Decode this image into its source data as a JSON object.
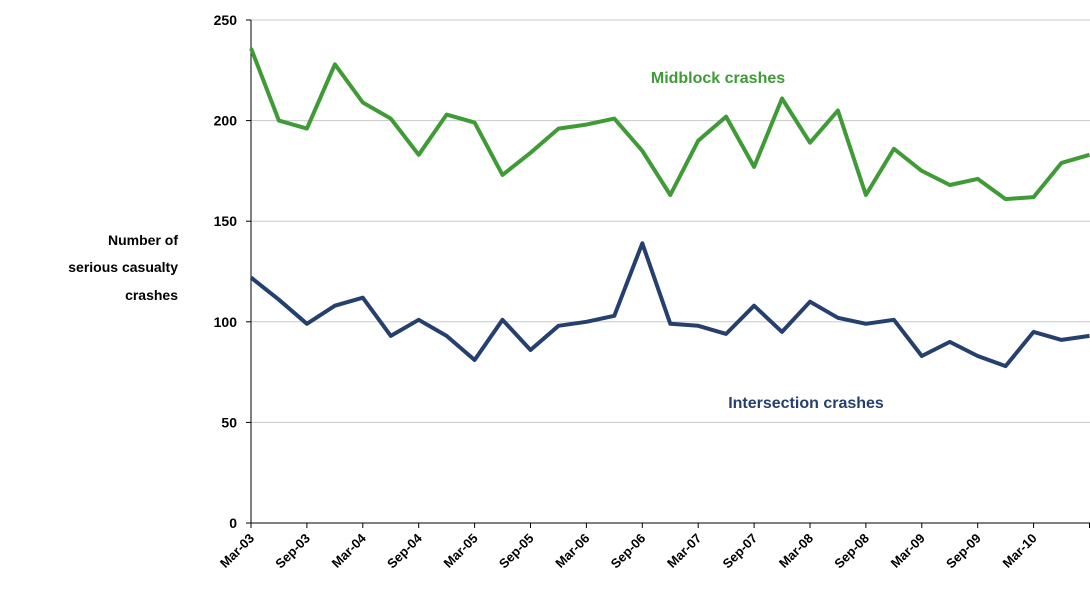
{
  "chart_data": {
    "type": "line",
    "y_label_lines": [
      "Number of",
      "serious casualty",
      "crashes"
    ],
    "categories": [
      "Mar-03",
      null,
      "Sep-03",
      null,
      "Mar-04",
      null,
      "Sep-04",
      null,
      "Mar-05",
      null,
      "Sep-05",
      null,
      "Mar-06",
      null,
      "Sep-06",
      null,
      "Mar-07",
      null,
      "Sep-07",
      null,
      "Mar-08",
      null,
      "Sep-08",
      null,
      "Mar-09",
      null,
      "Sep-09",
      null,
      "Mar-10",
      null,
      null
    ],
    "series": [
      {
        "name": "Midblock crashes",
        "color": "#3f9b35",
        "values": [
          236,
          200,
          196,
          228,
          209,
          201,
          183,
          203,
          199,
          173,
          184,
          196,
          198,
          201,
          185,
          163,
          190,
          202,
          177,
          211,
          189,
          205,
          163,
          186,
          175,
          168,
          171,
          161,
          162,
          179,
          183
        ]
      },
      {
        "name": "Intersection crashes",
        "color": "#253f6e",
        "values": [
          122,
          111,
          99,
          108,
          112,
          93,
          101,
          93,
          81,
          101,
          86,
          98,
          100,
          103,
          139,
          99,
          98,
          94,
          108,
          95,
          110,
          102,
          99,
          101,
          83,
          90,
          83,
          78,
          95,
          91,
          93
        ]
      }
    ],
    "ylim": [
      0,
      250
    ],
    "yticks": [
      0,
      50,
      100,
      150,
      200,
      250
    ],
    "grid": true
  }
}
